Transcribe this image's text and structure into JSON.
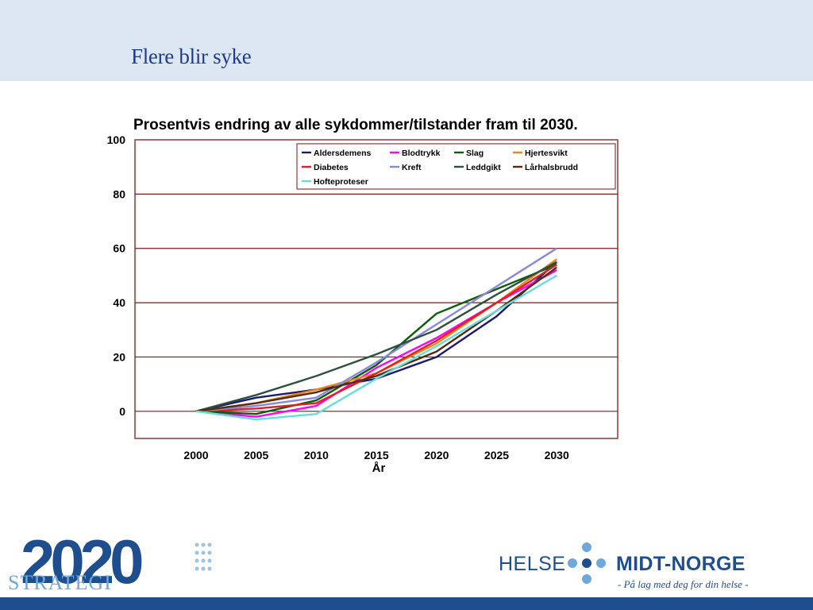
{
  "slide": {
    "title": "Flere blir syke"
  },
  "chart_data": {
    "type": "line",
    "title": "Prosentvis endring av alle sykdommer/tilstander fram til 2030.",
    "xlabel": "År",
    "ylabel": "",
    "x": [
      2000,
      2005,
      2010,
      2015,
      2020,
      2025,
      2030
    ],
    "ylim": [
      -10,
      100
    ],
    "yticks": [
      0,
      20,
      40,
      60,
      80,
      100
    ],
    "grid": true,
    "legend_position": "top",
    "series": [
      {
        "name": "Aldersdemens",
        "color": "#1a1a6e",
        "values": [
          0,
          5,
          8,
          12,
          20,
          35,
          55
        ]
      },
      {
        "name": "Blodtrykk",
        "color": "#ff00ff",
        "values": [
          0,
          -2,
          2,
          16,
          27,
          40,
          52
        ]
      },
      {
        "name": "Slag",
        "color": "#0c5c0c",
        "values": [
          0,
          -1,
          4,
          17,
          36,
          45,
          54
        ]
      },
      {
        "name": "Hjertesvikt",
        "color": "#e8871e",
        "values": [
          0,
          3,
          8,
          14,
          25,
          40,
          56
        ]
      },
      {
        "name": "Diabetes",
        "color": "#e02020",
        "values": [
          0,
          1,
          3,
          14,
          26,
          40,
          54
        ]
      },
      {
        "name": "Kreft",
        "color": "#8888dd",
        "values": [
          0,
          2,
          5,
          18,
          32,
          46,
          60
        ]
      },
      {
        "name": "Leddgikt",
        "color": "#2f4f3f",
        "values": [
          0,
          6,
          13,
          21,
          30,
          43,
          55
        ]
      },
      {
        "name": "Lårhalsbrudd",
        "color": "#5a2a0a",
        "values": [
          0,
          3,
          7,
          13,
          22,
          37,
          53
        ]
      },
      {
        "name": "Hofteproteser",
        "color": "#66dddd",
        "values": [
          0,
          -3,
          -1,
          12,
          24,
          37,
          50
        ]
      }
    ]
  },
  "logos": {
    "strategy_number": "2020",
    "strategy_word": "STRATEGI",
    "helse": "HELSE",
    "midt_norge": "MIDT-NORGE",
    "tagline": "- På lag med deg for din helse -"
  },
  "colors": {
    "header_band": "#dde7f3",
    "title": "#1f3c8c",
    "brand_blue": "#1f4e8f",
    "dot_light": "#6fa8dc",
    "grid": "#7a1a1a"
  }
}
